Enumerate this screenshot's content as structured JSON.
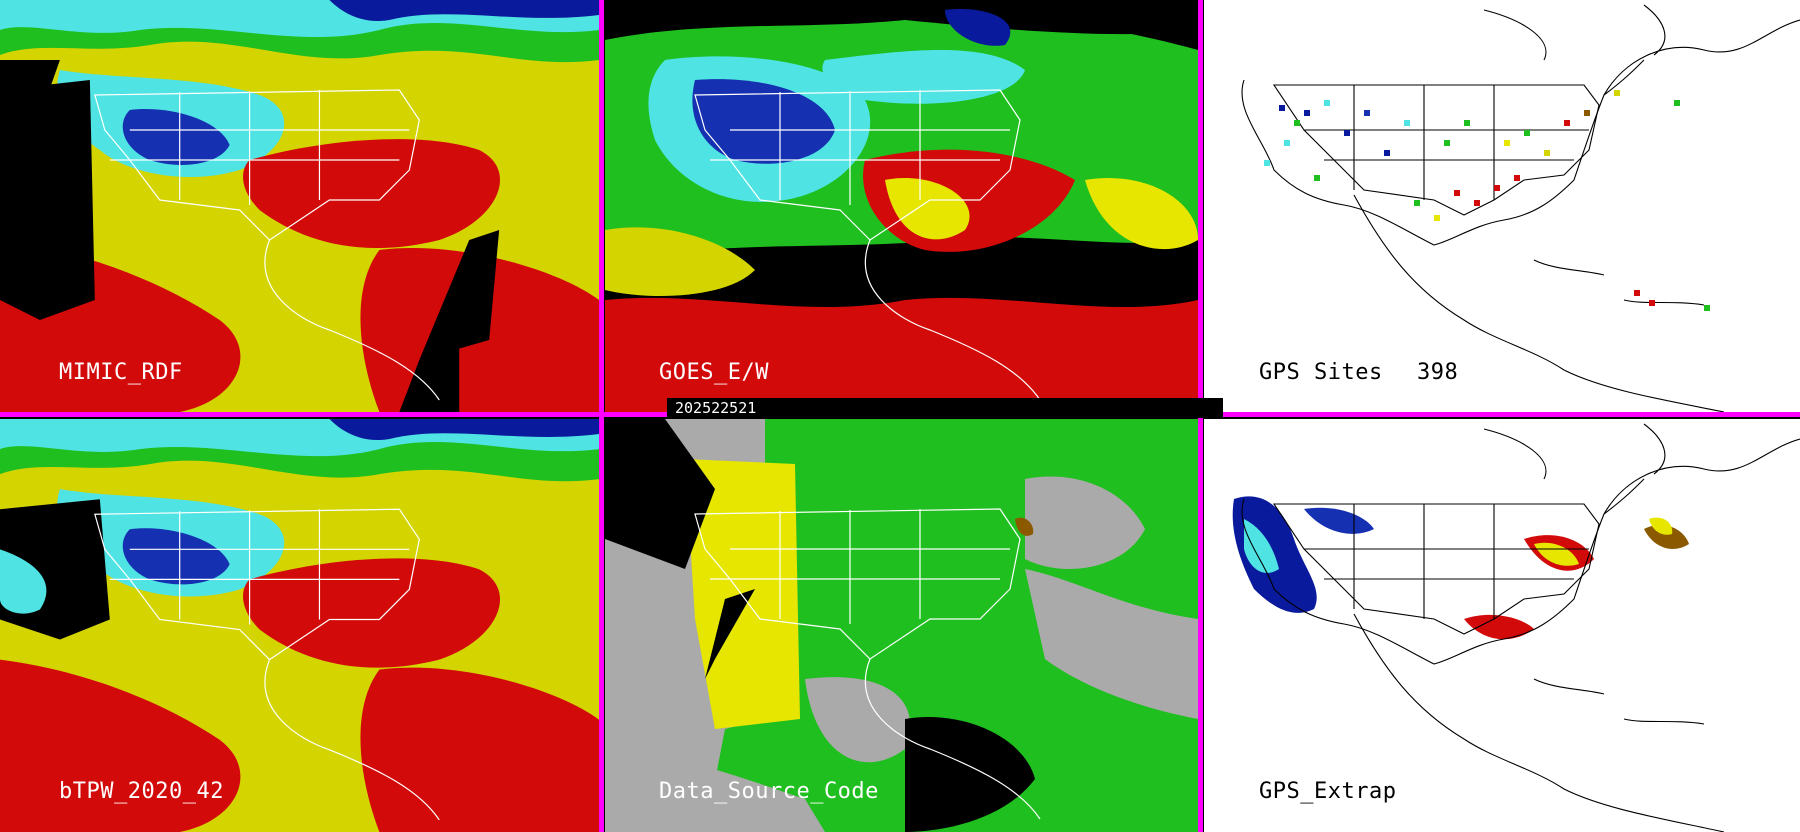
{
  "timestamp": "202522521",
  "colors": {
    "divider": "#ff00ff",
    "dry_blue": "#0a1a9c",
    "cyan": "#4fe3e3",
    "green": "#1fbf1f",
    "yellow": "#e6e600",
    "red": "#d20a0a",
    "gray": "#aaaaaa"
  },
  "panels": [
    {
      "id": "mimic",
      "label": "MIMIC_RDF"
    },
    {
      "id": "goes",
      "label": "GOES_E/W"
    },
    {
      "id": "gps-sites",
      "label": "GPS Sites",
      "count": "398"
    },
    {
      "id": "btpw",
      "label": "bTPW_2020_42"
    },
    {
      "id": "source",
      "label": "Data_Source_Code"
    },
    {
      "id": "gps-extrap",
      "label": "GPS_Extrap"
    }
  ]
}
